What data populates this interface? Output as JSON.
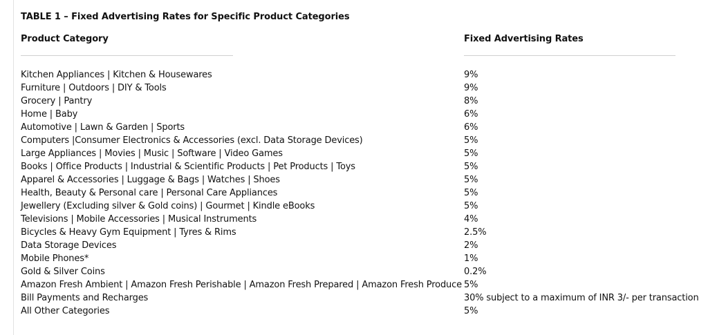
{
  "table": {
    "title": "TABLE 1 – Fixed Advertising Rates for Specific Product Categories",
    "headers": {
      "category": "Product Category",
      "rate": "Fixed Advertising Rates"
    },
    "rows": [
      {
        "category": "Kitchen Appliances | Kitchen & Housewares",
        "rate": "9%"
      },
      {
        "category": "Furniture | Outdoors | DIY & Tools",
        "rate": "9%"
      },
      {
        "category": "Grocery | Pantry",
        "rate": "8%"
      },
      {
        "category": "Home | Baby",
        "rate": "6%"
      },
      {
        "category": "Automotive | Lawn & Garden | Sports",
        "rate": "6%"
      },
      {
        "category": "Computers |Consumer Electronics & Accessories (excl. Data Storage Devices)",
        "rate": "5%"
      },
      {
        "category": "Large Appliances | Movies | Music | Software | Video Games",
        "rate": "5%"
      },
      {
        "category": "Books | Office Products | Industrial & Scientific Products | Pet Products | Toys",
        "rate": "5%"
      },
      {
        "category": "Apparel & Accessories | Luggage & Bags | Watches | Shoes",
        "rate": "5%"
      },
      {
        "category": "Health, Beauty & Personal care | Personal Care Appliances",
        "rate": "5%"
      },
      {
        "category": "Jewellery (Excluding silver & Gold coins) | Gourmet | Kindle eBooks",
        "rate": "5%"
      },
      {
        "category": "Televisions | Mobile Accessories | Musical Instruments",
        "rate": "4%"
      },
      {
        "category": "Bicycles & Heavy Gym Equipment | Tyres & Rims",
        "rate": "2.5%"
      },
      {
        "category": "Data Storage Devices",
        "rate": "2%"
      },
      {
        "category": "Mobile Phones*",
        "rate": "1%"
      },
      {
        "category": "Gold & Silver Coins",
        "rate": "0.2%"
      },
      {
        "category": "Amazon Fresh Ambient | Amazon Fresh Perishable | Amazon Fresh Prepared | Amazon Fresh Produce",
        "rate": "5%"
      },
      {
        "category": "Bill Payments and Recharges",
        "rate": "30% subject to a maximum of INR 3/- per transaction"
      },
      {
        "category": "All Other Categories",
        "rate": "5%"
      }
    ]
  }
}
